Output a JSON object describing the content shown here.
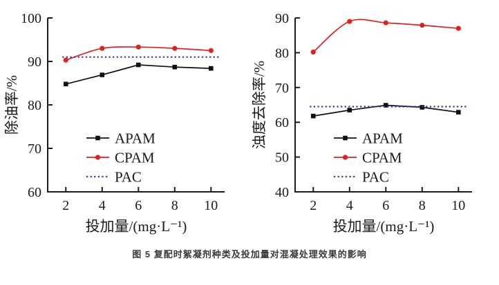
{
  "figure": {
    "caption": "图 5 复配时絮凝剂种类及投加量对混凝处理效果的影响"
  },
  "colors": {
    "apam": "#111111",
    "cpam": "#e0201f",
    "pac": "#3434a4",
    "axis": "#1a1a1a"
  },
  "chart_data": [
    {
      "type": "line",
      "title": "",
      "xlabel": "投加量/(mg·L⁻¹)",
      "ylabel": "除油率/%",
      "x": [
        2,
        4,
        6,
        8,
        10
      ],
      "xticks": [
        2,
        4,
        6,
        8,
        10
      ],
      "xlim": [
        1,
        10.75
      ],
      "ylim": [
        60,
        100
      ],
      "yticks": [
        60,
        70,
        80,
        90,
        100
      ],
      "grid": false,
      "legend_position": "inside-bottom-center",
      "series": [
        {
          "name": "APAM",
          "color": "#111111",
          "marker": "square",
          "line": "solid",
          "smooth": false,
          "values": [
            84.8,
            86.9,
            89.2,
            88.7,
            88.4
          ]
        },
        {
          "name": "CPAM",
          "color": "#e0201f",
          "marker": "circle",
          "line": "solid",
          "smooth": true,
          "values": [
            90.3,
            93.0,
            93.3,
            93.0,
            92.5
          ]
        },
        {
          "name": "PAC",
          "color": "#3434a4",
          "marker": "none",
          "line": "dotted",
          "constant": 91.0
        }
      ]
    },
    {
      "type": "line",
      "title": "",
      "xlabel": "投加量/(mg·L⁻¹)",
      "ylabel": "浊度去除率/%",
      "x": [
        2,
        4,
        6,
        8,
        10
      ],
      "xticks": [
        2,
        4,
        6,
        8,
        10
      ],
      "xlim": [
        1,
        10.75
      ],
      "ylim": [
        40,
        90
      ],
      "yticks": [
        40,
        50,
        60,
        70,
        80,
        90
      ],
      "grid": false,
      "legend_position": "inside-bottom-center",
      "series": [
        {
          "name": "APAM",
          "color": "#111111",
          "marker": "square",
          "line": "solid",
          "smooth": false,
          "values": [
            61.8,
            63.5,
            64.9,
            64.3,
            62.9
          ]
        },
        {
          "name": "CPAM",
          "color": "#e0201f",
          "marker": "circle",
          "line": "solid",
          "smooth": true,
          "values": [
            80.2,
            89.0,
            88.6,
            87.9,
            87.0
          ]
        },
        {
          "name": "PAC",
          "color": "#3434a4",
          "marker": "none",
          "line": "dotted",
          "constant": 64.5
        }
      ]
    }
  ]
}
